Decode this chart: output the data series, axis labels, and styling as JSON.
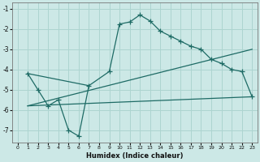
{
  "xlabel": "Humidex (Indice chaleur)",
  "background_color": "#cce8e6",
  "grid_color": "#add4d0",
  "line_color": "#1e6b65",
  "xlim": [
    -0.5,
    23.5
  ],
  "ylim": [
    -7.6,
    -0.7
  ],
  "xticks": [
    0,
    1,
    2,
    3,
    4,
    5,
    6,
    7,
    8,
    9,
    10,
    11,
    12,
    13,
    14,
    15,
    16,
    17,
    18,
    19,
    20,
    21,
    22,
    23
  ],
  "yticks": [
    -7,
    -6,
    -5,
    -4,
    -3,
    -2,
    -1
  ],
  "lines": [
    {
      "x": [
        1,
        2,
        3,
        4,
        5,
        6,
        7,
        9,
        10,
        11,
        12,
        13,
        14,
        15,
        16,
        17,
        18,
        19,
        20,
        21,
        22,
        23
      ],
      "y": [
        -4.2,
        -5.0,
        -5.8,
        -5.5,
        -7.0,
        -7.3,
        -4.8,
        -4.1,
        -1.75,
        -1.65,
        -1.3,
        -1.6,
        -2.1,
        -2.35,
        -2.6,
        -2.85,
        -3.0,
        -3.5,
        -3.7,
        -4.0,
        -4.1,
        -5.35
      ],
      "marker": true
    },
    {
      "x": [
        1,
        23
      ],
      "y": [
        -5.8,
        -3.0
      ],
      "marker": false
    },
    {
      "x": [
        1,
        23
      ],
      "y": [
        -5.8,
        -5.35
      ],
      "marker": false
    },
    {
      "x": [
        1,
        7
      ],
      "y": [
        -4.2,
        -4.8
      ],
      "marker": false
    }
  ]
}
